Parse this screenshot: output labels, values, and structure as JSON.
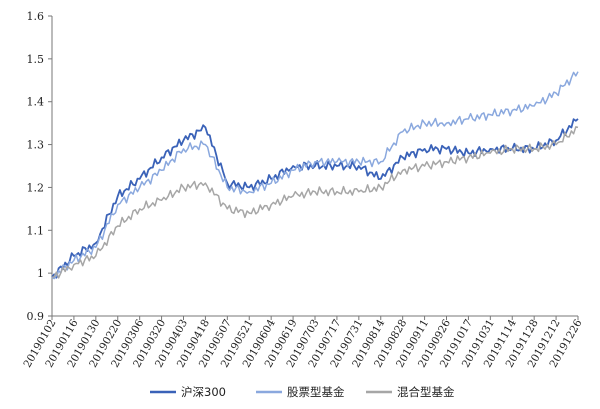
{
  "chart_data": {
    "type": "line",
    "title": "",
    "xlabel": "",
    "ylabel": "",
    "ylim": [
      0.9,
      1.6
    ],
    "yticks": [
      "0.9",
      "1",
      "1.1",
      "1.2",
      "1.3",
      "1.4",
      "1.5",
      "1.6"
    ],
    "grid": false,
    "legend_position": "bottom",
    "categories": [
      "20190102",
      "20190116",
      "20190130",
      "20190220",
      "20190306",
      "20190320",
      "20190403",
      "20190418",
      "20190507",
      "20190521",
      "20190604",
      "20190619",
      "20190703",
      "20190717",
      "20190731",
      "20190814",
      "20190828",
      "20190911",
      "20190926",
      "20191017",
      "20191031",
      "20191114",
      "20191128",
      "20191212",
      "20191226"
    ],
    "series": [
      {
        "name": "沪深300",
        "color": "#3a62b8",
        "values": [
          0.99,
          1.04,
          1.07,
          1.18,
          1.22,
          1.27,
          1.31,
          1.34,
          1.21,
          1.2,
          1.22,
          1.25,
          1.25,
          1.25,
          1.25,
          1.22,
          1.27,
          1.29,
          1.29,
          1.28,
          1.29,
          1.29,
          1.29,
          1.31,
          1.36
        ]
      },
      {
        "name": "股票型基金",
        "color": "#8aa8de",
        "values": [
          0.99,
          1.03,
          1.06,
          1.16,
          1.2,
          1.24,
          1.29,
          1.3,
          1.2,
          1.19,
          1.21,
          1.24,
          1.26,
          1.26,
          1.26,
          1.26,
          1.33,
          1.35,
          1.35,
          1.36,
          1.37,
          1.38,
          1.39,
          1.42,
          1.47
        ]
      },
      {
        "name": "混合型基金",
        "color": "#a6a6a6",
        "values": [
          0.99,
          1.02,
          1.04,
          1.11,
          1.15,
          1.17,
          1.2,
          1.21,
          1.15,
          1.14,
          1.16,
          1.18,
          1.19,
          1.19,
          1.19,
          1.2,
          1.24,
          1.25,
          1.26,
          1.27,
          1.28,
          1.29,
          1.29,
          1.3,
          1.34
        ]
      }
    ]
  }
}
